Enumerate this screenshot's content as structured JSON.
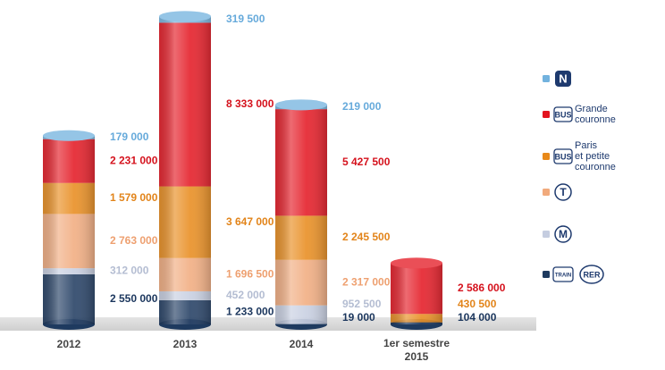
{
  "chart_data": {
    "type": "stacked-cylinder",
    "categories": [
      "2012",
      "2013",
      "2014",
      "1er semestre 2015"
    ],
    "series": [
      {
        "icons": [
          "TRAIN",
          "RER"
        ],
        "color": "#1e3a5f",
        "label_color": "#1b365d",
        "values": [
          2550000,
          1233000,
          19000,
          104000
        ],
        "value_labels": [
          "2 550 000",
          "1 233 000",
          "19 000",
          "104 000"
        ]
      },
      {
        "icons": [
          "M"
        ],
        "color": "#c5cde0",
        "label_color": "#b4bdd2",
        "values": [
          312000,
          452000,
          952500,
          null
        ],
        "value_labels": [
          "312 000",
          "452 000",
          "952 500",
          null
        ]
      },
      {
        "icons": [
          "T"
        ],
        "color": "#f1aa7c",
        "label_color": "#eea070",
        "values": [
          2763000,
          1696500,
          2317000,
          null
        ],
        "value_labels": [
          "2 763 000",
          "1 696 500",
          "2 317 000",
          null
        ]
      },
      {
        "icons": [
          "BUS"
        ],
        "name": "Paris et petite couronne",
        "color": "#e8891a",
        "label_color": "#e2841a",
        "values": [
          1579000,
          3647000,
          2245500,
          430500
        ],
        "value_labels": [
          "1 579 000",
          "3 647 000",
          "2 245 500",
          "430 500"
        ]
      },
      {
        "icons": [
          "BUS"
        ],
        "name": "Grande couronne",
        "color": "#e3141f",
        "label_color": "#d5121d",
        "values": [
          2231000,
          8333000,
          5427500,
          2586000
        ],
        "value_labels": [
          "2 231 000",
          "8 333 000",
          "5 427 500",
          "2 586 000"
        ]
      },
      {
        "icons": [
          "N"
        ],
        "color": "#72b2de",
        "label_color": "#66aadb",
        "values": [
          179000,
          319500,
          219000,
          null
        ],
        "value_labels": [
          "179 000",
          "319 500",
          "219 000",
          null
        ]
      }
    ]
  }
}
